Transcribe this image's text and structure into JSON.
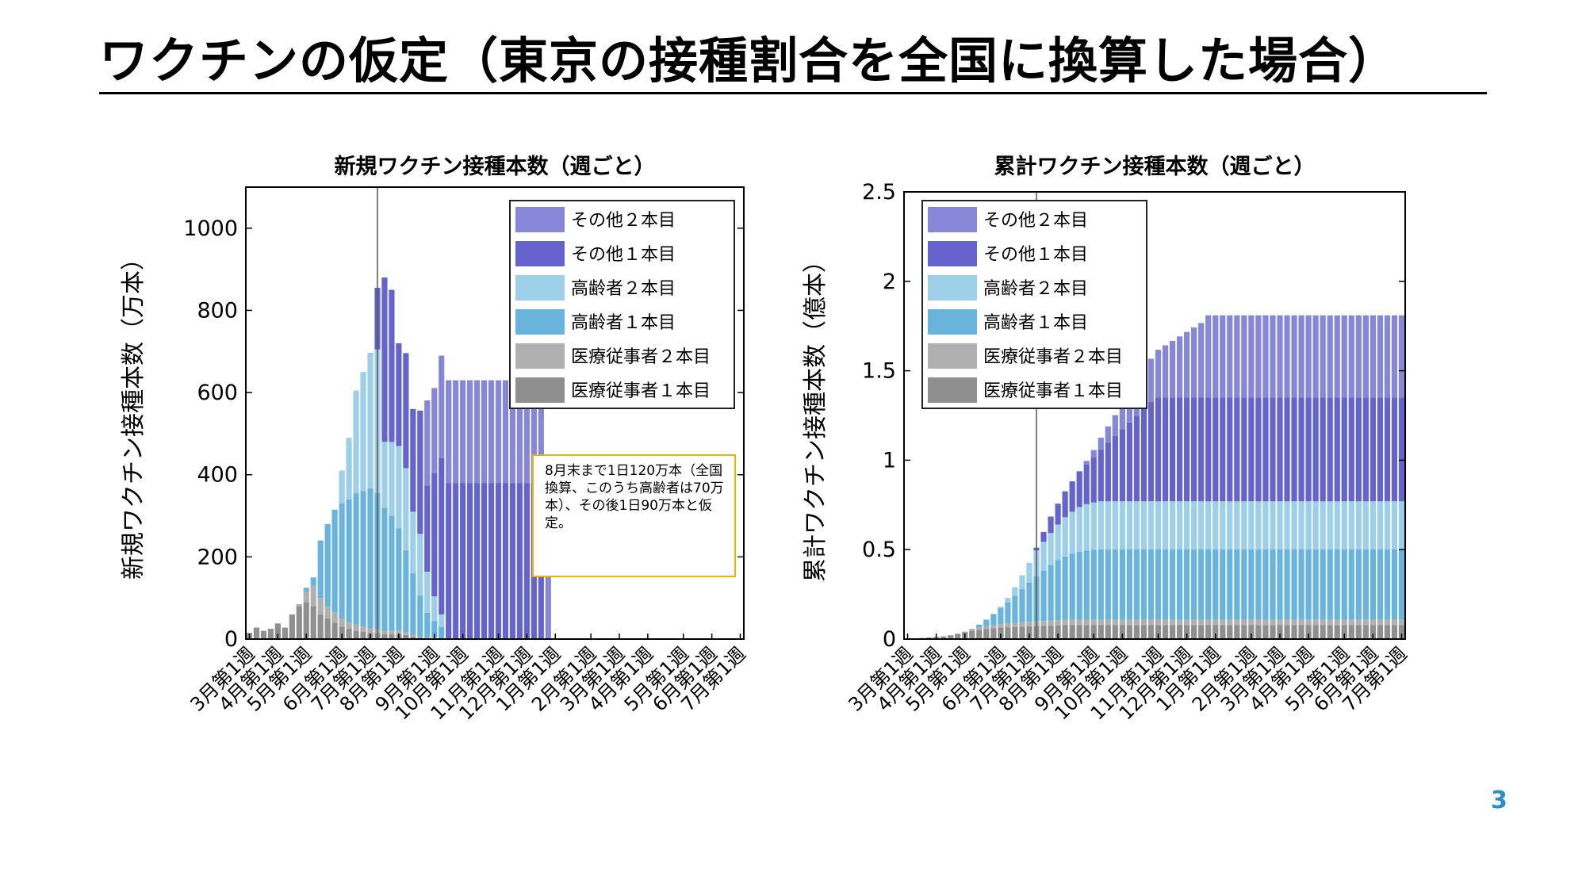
{
  "slide": {
    "title": "ワクチンの仮定（東京の接種割合を全国に換算した場合）",
    "page_number": "3",
    "annotation": "8月末まで1日120万本（全国換算、このうち高齢者は70万本）、その後1日90万本と仮定。"
  },
  "colors": {
    "other_2": "#8787d8",
    "other_1": "#6464cc",
    "elderly_2": "#9dcfe8",
    "elderly_1": "#69b4dc",
    "medical_2": "#b0b0b0",
    "medical_1": "#8f8f8f",
    "annotation_border": "#f0b400",
    "page_number": "#2a8fc6"
  },
  "chart_data": [
    {
      "type": "bar",
      "stacked": true,
      "title": "新規ワクチン接種本数（週ごと）",
      "xlabel": "",
      "ylabel": "新規ワクチン接種本数（万本）",
      "ylim": [
        0,
        1100
      ],
      "yticks": [
        0,
        200,
        400,
        600,
        800,
        1000
      ],
      "ytick_labels": [
        "0",
        "200",
        "400",
        "600",
        "800",
        "1000"
      ],
      "legend_position": "top-right",
      "x_week_count": 70,
      "x_tick_labels": [
        "3月第1週",
        "4月第1週",
        "5月第1週",
        "6月第1週",
        "7月第1週",
        "8月第1週",
        "9月第1週",
        "10月第1週",
        "11月第1週",
        "12月第1週",
        "1月第1週",
        "2月第1週",
        "3月第1週",
        "4月第1週",
        "5月第1週",
        "6月第1週",
        "7月第1週"
      ],
      "x_tick_positions": [
        0,
        4,
        8,
        13,
        17,
        21,
        26,
        30,
        35,
        39,
        43,
        48,
        52,
        56,
        61,
        65,
        69
      ],
      "reference_line_week": 18,
      "series": [
        {
          "name": "医療従事者１本目",
          "color_key": "medical_1",
          "values": [
            15,
            28,
            20,
            25,
            38,
            28,
            60,
            80,
            90,
            80,
            60,
            50,
            40,
            30,
            25,
            20,
            18,
            15,
            15,
            12,
            12,
            12,
            10,
            5,
            3,
            2,
            2,
            0,
            0,
            0,
            0,
            0,
            0,
            0,
            0,
            0,
            0,
            0,
            0,
            0,
            0,
            0,
            0,
            0,
            0,
            0,
            0,
            0,
            0,
            0,
            0,
            0,
            0,
            0,
            0,
            0,
            0,
            0,
            0,
            0,
            0,
            0,
            0,
            0,
            0,
            0,
            0,
            0,
            0,
            0
          ]
        },
        {
          "name": "医療従事者２本目",
          "color_key": "medical_2",
          "values": [
            0,
            0,
            0,
            0,
            0,
            0,
            0,
            5,
            25,
            50,
            40,
            30,
            25,
            20,
            15,
            15,
            12,
            12,
            10,
            8,
            8,
            8,
            6,
            5,
            3,
            2,
            2,
            0,
            0,
            0,
            0,
            0,
            0,
            0,
            0,
            0,
            0,
            0,
            0,
            0,
            0,
            0,
            0,
            0,
            0,
            0,
            0,
            0,
            0,
            0,
            0,
            0,
            0,
            0,
            0,
            0,
            0,
            0,
            0,
            0,
            0,
            0,
            0,
            0,
            0,
            0,
            0,
            0,
            0,
            0
          ]
        },
        {
          "name": "高齢者１本目",
          "color_key": "elderly_1",
          "values": [
            0,
            0,
            0,
            0,
            0,
            0,
            0,
            0,
            10,
            20,
            140,
            200,
            250,
            280,
            300,
            320,
            330,
            340,
            330,
            300,
            280,
            250,
            200,
            150,
            100,
            60,
            40,
            30,
            0,
            0,
            0,
            0,
            0,
            0,
            0,
            0,
            0,
            0,
            0,
            0,
            0,
            0,
            0,
            0,
            0,
            0,
            0,
            0,
            0,
            0,
            0,
            0,
            0,
            0,
            0,
            0,
            0,
            0,
            0,
            0,
            0,
            0,
            0,
            0,
            0,
            0,
            0,
            0,
            0,
            0
          ]
        },
        {
          "name": "高齢者２本目",
          "color_key": "elderly_2",
          "values": [
            0,
            0,
            0,
            0,
            0,
            0,
            0,
            0,
            0,
            0,
            0,
            0,
            0,
            80,
            150,
            250,
            290,
            330,
            350,
            160,
            180,
            200,
            200,
            150,
            150,
            100,
            60,
            30,
            0,
            0,
            0,
            0,
            0,
            0,
            0,
            0,
            0,
            0,
            0,
            0,
            0,
            0,
            0,
            0,
            0,
            0,
            0,
            0,
            0,
            0,
            0,
            0,
            0,
            0,
            0,
            0,
            0,
            0,
            0,
            0,
            0,
            0,
            0,
            0,
            0,
            0,
            0,
            0,
            0,
            0
          ]
        },
        {
          "name": "その他１本目",
          "color_key": "other_1",
          "values": [
            0,
            0,
            0,
            0,
            0,
            0,
            0,
            0,
            0,
            0,
            0,
            0,
            0,
            0,
            0,
            0,
            0,
            0,
            150,
            400,
            370,
            250,
            280,
            250,
            300,
            210,
            300,
            380,
            380,
            380,
            380,
            380,
            380,
            380,
            380,
            380,
            380,
            380,
            380,
            380,
            380,
            380,
            0,
            0,
            0,
            0,
            0,
            0,
            0,
            0,
            0,
            0,
            0,
            0,
            0,
            0,
            0,
            0,
            0,
            0,
            0,
            0,
            0,
            0,
            0,
            0,
            0,
            0,
            0,
            0
          ]
        },
        {
          "name": "その他２本目",
          "color_key": "other_2",
          "values": [
            0,
            0,
            0,
            0,
            0,
            0,
            0,
            0,
            0,
            0,
            0,
            0,
            0,
            0,
            0,
            0,
            0,
            0,
            0,
            0,
            0,
            0,
            0,
            0,
            0,
            207,
            207,
            250,
            250,
            250,
            250,
            250,
            250,
            250,
            250,
            250,
            250,
            250,
            250,
            250,
            250,
            250,
            430,
            0,
            0,
            0,
            0,
            0,
            0,
            0,
            0,
            0,
            0,
            0,
            0,
            0,
            0,
            0,
            0,
            0,
            0,
            0,
            0,
            0,
            0,
            0,
            0,
            0,
            0,
            0
          ]
        }
      ]
    },
    {
      "type": "bar",
      "stacked": true,
      "title": "累計ワクチン接種本数（週ごと）",
      "xlabel": "",
      "ylabel": "累計ワクチン接種本数（億本）",
      "ylim": [
        0,
        2.5
      ],
      "yticks": [
        0,
        0.5,
        1,
        1.5,
        2,
        2.5
      ],
      "ytick_labels": [
        "0",
        "0.5",
        "1",
        "1.5",
        "2",
        "2.5"
      ],
      "legend_position": "top-left",
      "x_week_count": 70,
      "x_tick_labels": [
        "3月第1週",
        "4月第1週",
        "5月第1週",
        "6月第1週",
        "7月第1週",
        "8月第1週",
        "9月第1週",
        "10月第1週",
        "11月第1週",
        "12月第1週",
        "1月第1週",
        "2月第1週",
        "3月第1週",
        "4月第1週",
        "5月第1週",
        "6月第1週",
        "7月第1週"
      ],
      "x_tick_positions": [
        0,
        4,
        8,
        13,
        17,
        21,
        26,
        30,
        35,
        39,
        43,
        48,
        52,
        56,
        61,
        65,
        69
      ],
      "reference_line_week": 18,
      "series": [
        {
          "name": "医療従事者１本目",
          "color_key": "medical_1",
          "values": [
            0.002,
            0.004,
            0.006,
            0.009,
            0.012,
            0.015,
            0.021,
            0.029,
            0.038,
            0.046,
            0.052,
            0.057,
            0.061,
            0.064,
            0.066,
            0.068,
            0.07,
            0.072,
            0.073,
            0.074,
            0.076,
            0.077,
            0.078,
            0.078,
            0.079,
            0.079,
            0.079,
            0.079,
            0.079,
            0.079,
            0.079,
            0.079,
            0.079,
            0.079,
            0.079,
            0.079,
            0.079,
            0.079,
            0.079,
            0.079,
            0.079,
            0.079,
            0.079,
            0.079,
            0.079,
            0.079,
            0.079,
            0.079,
            0.079,
            0.079,
            0.079,
            0.079,
            0.079,
            0.079,
            0.079,
            0.079,
            0.079,
            0.079,
            0.079,
            0.079,
            0.079,
            0.079,
            0.079,
            0.079,
            0.079,
            0.079,
            0.079,
            0.079,
            0.079,
            0.079
          ]
        },
        {
          "name": "医療従事者２本目",
          "color_key": "medical_2",
          "values": [
            0,
            0,
            0,
            0,
            0,
            0,
            0,
            0.001,
            0.003,
            0.008,
            0.012,
            0.015,
            0.017,
            0.019,
            0.021,
            0.022,
            0.024,
            0.025,
            0.026,
            0.027,
            0.028,
            0.029,
            0.029,
            0.03,
            0.03,
            0.03,
            0.03,
            0.03,
            0.03,
            0.03,
            0.03,
            0.03,
            0.03,
            0.03,
            0.03,
            0.03,
            0.03,
            0.03,
            0.03,
            0.03,
            0.03,
            0.03,
            0.03,
            0.03,
            0.03,
            0.03,
            0.03,
            0.03,
            0.03,
            0.03,
            0.03,
            0.03,
            0.03,
            0.03,
            0.03,
            0.03,
            0.03,
            0.03,
            0.03,
            0.03,
            0.03,
            0.03,
            0.03,
            0.03,
            0.03,
            0.03,
            0.03,
            0.03,
            0.03,
            0.03
          ]
        },
        {
          "name": "高齢者１本目",
          "color_key": "elderly_1",
          "values": [
            0,
            0,
            0,
            0,
            0,
            0,
            0,
            0,
            0.001,
            0.003,
            0.017,
            0.037,
            0.062,
            0.09,
            0.12,
            0.152,
            0.185,
            0.219,
            0.252,
            0.282,
            0.31,
            0.335,
            0.355,
            0.37,
            0.38,
            0.386,
            0.39,
            0.393,
            0.393,
            0.393,
            0.393,
            0.393,
            0.393,
            0.393,
            0.393,
            0.393,
            0.393,
            0.393,
            0.393,
            0.393,
            0.393,
            0.393,
            0.393,
            0.393,
            0.393,
            0.393,
            0.393,
            0.393,
            0.393,
            0.393,
            0.393,
            0.393,
            0.393,
            0.393,
            0.393,
            0.393,
            0.393,
            0.393,
            0.393,
            0.393,
            0.393,
            0.393,
            0.393,
            0.393,
            0.393,
            0.393,
            0.393,
            0.393,
            0.393,
            0.393
          ]
        },
        {
          "name": "高齢者２本目",
          "color_key": "elderly_2",
          "values": [
            0,
            0,
            0,
            0,
            0,
            0,
            0,
            0,
            0,
            0,
            0,
            0,
            0,
            0.008,
            0.023,
            0.048,
            0.077,
            0.11,
            0.145,
            0.161,
            0.179,
            0.199,
            0.219,
            0.234,
            0.249,
            0.259,
            0.265,
            0.268,
            0.268,
            0.268,
            0.268,
            0.268,
            0.268,
            0.268,
            0.268,
            0.268,
            0.268,
            0.268,
            0.268,
            0.268,
            0.268,
            0.268,
            0.268,
            0.268,
            0.268,
            0.268,
            0.268,
            0.268,
            0.268,
            0.268,
            0.268,
            0.268,
            0.268,
            0.268,
            0.268,
            0.268,
            0.268,
            0.268,
            0.268,
            0.268,
            0.268,
            0.268,
            0.268,
            0.268,
            0.268,
            0.268,
            0.268,
            0.268,
            0.268,
            0.268
          ]
        },
        {
          "name": "その他１本目",
          "color_key": "other_1",
          "values": [
            0,
            0,
            0,
            0,
            0,
            0,
            0,
            0,
            0,
            0,
            0,
            0,
            0,
            0,
            0,
            0,
            0,
            0,
            0.015,
            0.055,
            0.092,
            0.117,
            0.145,
            0.17,
            0.2,
            0.221,
            0.251,
            0.289,
            0.327,
            0.365,
            0.403,
            0.441,
            0.479,
            0.517,
            0.555,
            0.58,
            0.58,
            0.58,
            0.58,
            0.58,
            0.58,
            0.58,
            0.58,
            0.58,
            0.58,
            0.58,
            0.58,
            0.58,
            0.58,
            0.58,
            0.58,
            0.58,
            0.58,
            0.58,
            0.58,
            0.58,
            0.58,
            0.58,
            0.58,
            0.58,
            0.58,
            0.58,
            0.58,
            0.58,
            0.58,
            0.58,
            0.58,
            0.58,
            0.58,
            0.58
          ]
        },
        {
          "name": "その他２本目",
          "color_key": "other_2",
          "values": [
            0,
            0,
            0,
            0,
            0,
            0,
            0,
            0,
            0,
            0,
            0,
            0,
            0,
            0,
            0,
            0,
            0,
            0,
            0,
            0,
            0,
            0,
            0,
            0,
            0,
            0.021,
            0.042,
            0.067,
            0.092,
            0.117,
            0.142,
            0.167,
            0.192,
            0.217,
            0.242,
            0.267,
            0.292,
            0.317,
            0.342,
            0.367,
            0.392,
            0.417,
            0.46,
            0.46,
            0.46,
            0.46,
            0.46,
            0.46,
            0.46,
            0.46,
            0.46,
            0.46,
            0.46,
            0.46,
            0.46,
            0.46,
            0.46,
            0.46,
            0.46,
            0.46,
            0.46,
            0.46,
            0.46,
            0.46,
            0.46,
            0.46,
            0.46,
            0.46,
            0.46,
            0.46
          ]
        }
      ]
    }
  ]
}
